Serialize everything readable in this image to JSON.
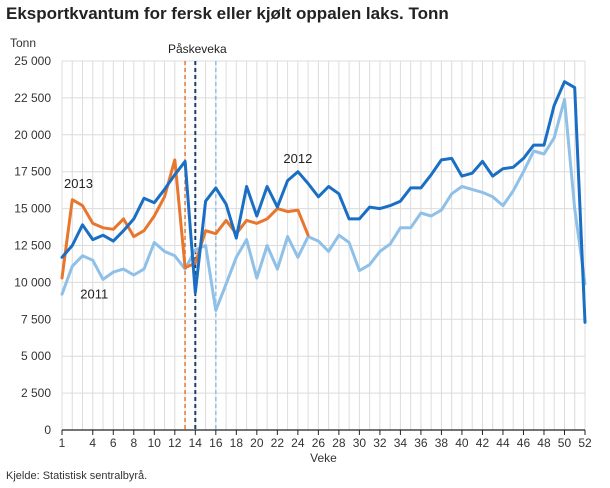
{
  "title": "Eksportkvantum for fersk eller kjølt oppalen laks. Tonn",
  "source": "Kjelde: Statistisk sentralbyrå.",
  "chart_data": {
    "type": "line",
    "title": "Eksportkvantum for fersk eller kjølt oppalen laks. Tonn",
    "ylabel": "Tonn",
    "xlabel": "Veke",
    "xlim": [
      1,
      52
    ],
    "ylim": [
      0,
      25000
    ],
    "grid": true,
    "x_ticks": [
      1,
      4,
      6,
      8,
      10,
      12,
      14,
      16,
      18,
      20,
      22,
      24,
      26,
      28,
      30,
      32,
      34,
      36,
      38,
      40,
      42,
      44,
      46,
      48,
      50,
      52
    ],
    "y_ticks": [
      0,
      2500,
      5000,
      7500,
      10000,
      12500,
      15000,
      17500,
      20000,
      22500,
      25000
    ],
    "y_tick_labels": [
      "0",
      "2 500",
      "5 000",
      "7 500",
      "10 000",
      "12 500",
      "15 000",
      "17 500",
      "20 000",
      "22 500",
      "25 000"
    ],
    "annotation": "Påskeveka",
    "series": [
      {
        "name": "2011",
        "color": "#8fc0e8",
        "x": [
          1,
          2,
          3,
          4,
          5,
          6,
          7,
          8,
          9,
          10,
          11,
          12,
          13,
          14,
          15,
          16,
          17,
          18,
          19,
          20,
          21,
          22,
          23,
          24,
          25,
          26,
          27,
          28,
          29,
          30,
          31,
          32,
          33,
          34,
          35,
          36,
          37,
          38,
          39,
          40,
          41,
          42,
          43,
          44,
          45,
          46,
          47,
          48,
          49,
          50,
          51,
          52
        ],
        "values": [
          9200,
          11100,
          11800,
          11500,
          10200,
          10700,
          10900,
          10500,
          10900,
          12700,
          12100,
          11800,
          10900,
          12200,
          12500,
          8100,
          9900,
          11700,
          12900,
          10300,
          12500,
          10900,
          13100,
          11700,
          13100,
          12800,
          12100,
          13200,
          12700,
          10800,
          11200,
          12100,
          12600,
          13700,
          13700,
          14700,
          14500,
          14900,
          16000,
          16500,
          16300,
          16100,
          15800,
          15200,
          16200,
          17500,
          18900,
          18700,
          19800,
          22400,
          15000,
          9900
        ]
      },
      {
        "name": "2012",
        "color": "#1a6fc4",
        "x": [
          1,
          2,
          3,
          4,
          5,
          6,
          7,
          8,
          9,
          10,
          11,
          12,
          13,
          14,
          15,
          16,
          17,
          18,
          19,
          20,
          21,
          22,
          23,
          24,
          25,
          26,
          27,
          28,
          29,
          30,
          31,
          32,
          33,
          34,
          35,
          36,
          37,
          38,
          39,
          40,
          41,
          42,
          43,
          44,
          45,
          46,
          47,
          48,
          49,
          50,
          51,
          52
        ],
        "values": [
          11700,
          12500,
          13900,
          12900,
          13200,
          12800,
          13500,
          14300,
          15700,
          15400,
          16300,
          17300,
          18200,
          9300,
          15500,
          16400,
          15300,
          13000,
          16500,
          14500,
          16500,
          15100,
          16900,
          17500,
          16700,
          15800,
          16500,
          16000,
          14300,
          14300,
          15100,
          15000,
          15200,
          15500,
          16400,
          16400,
          17300,
          18300,
          18400,
          17200,
          17400,
          18200,
          17200,
          17700,
          17800,
          18400,
          19300,
          19300,
          22000,
          23600,
          23200,
          7300
        ]
      },
      {
        "name": "2013",
        "color": "#e8762d",
        "x": [
          1,
          2,
          3,
          4,
          5,
          6,
          7,
          8,
          9,
          10,
          11,
          12,
          13,
          14,
          15,
          16,
          17,
          18,
          19,
          20,
          21,
          22,
          23,
          24,
          25
        ],
        "values": [
          10300,
          15600,
          15200,
          14000,
          13700,
          13600,
          14300,
          13100,
          13500,
          14500,
          15800,
          18300,
          11000,
          11300,
          13500,
          13300,
          14200,
          13300,
          14200,
          14000,
          14300,
          15000,
          14800,
          14900,
          13200
        ]
      }
    ],
    "reference_lines": [
      {
        "x": 13,
        "color": "#e8762d"
      },
      {
        "x": 14,
        "color": "#1a3f6e"
      },
      {
        "x": 16,
        "color": "#8fc0e8"
      }
    ]
  }
}
